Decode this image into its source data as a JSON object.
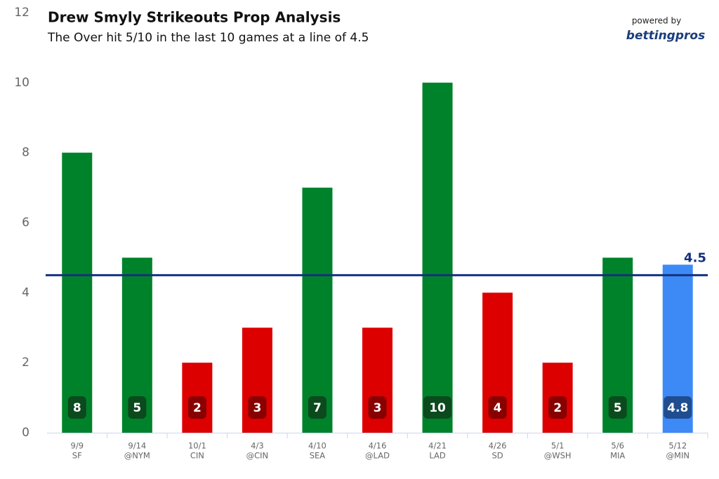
{
  "chart_data": {
    "type": "bar",
    "title": "Drew Smyly Strikeouts Prop Analysis",
    "subtitle": "The Over hit 5/10 in the last 10 games at a line of 4.5",
    "credit": "powered by",
    "brand": "bettingpros",
    "categories": [
      [
        "9/9",
        "SF"
      ],
      [
        "9/14",
        "@NYM"
      ],
      [
        "10/1",
        "CIN"
      ],
      [
        "4/3",
        "@CIN"
      ],
      [
        "4/10",
        "SEA"
      ],
      [
        "4/16",
        "@LAD"
      ],
      [
        "4/21",
        "LAD"
      ],
      [
        "4/26",
        "SD"
      ],
      [
        "5/1",
        "@WSH"
      ],
      [
        "5/6",
        "MIA"
      ],
      [
        "5/12",
        "@MIN"
      ]
    ],
    "values": [
      8,
      5,
      2,
      3,
      7,
      3,
      10,
      4,
      2,
      5,
      4.8
    ],
    "colors": [
      "#00822a",
      "#00822a",
      "#dd0000",
      "#dd0000",
      "#00822a",
      "#dd0000",
      "#00822a",
      "#dd0000",
      "#dd0000",
      "#00822a",
      "#3d8af7"
    ],
    "label_colors": [
      "#0b4a1d",
      "#0b4a1d",
      "#880000",
      "#880000",
      "#0b4a1d",
      "#880000",
      "#0b4a1d",
      "#880000",
      "#880000",
      "#0b4a1d",
      "#1f4d8f"
    ],
    "line_value": 4.5,
    "line_color": "#15317e",
    "ylim": [
      0,
      12
    ],
    "yticks": [
      0,
      2,
      4,
      6,
      8,
      10,
      12
    ],
    "grid": false
  }
}
